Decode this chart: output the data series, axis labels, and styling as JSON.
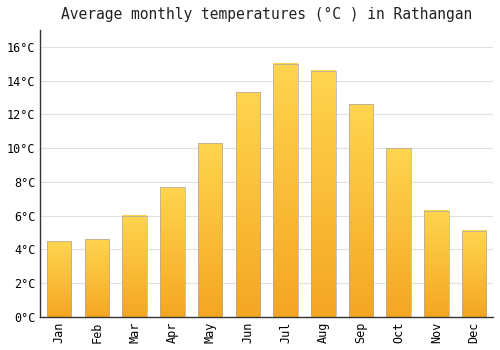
{
  "title": "Average monthly temperatures (°C ) in Rathangan",
  "months": [
    "Jan",
    "Feb",
    "Mar",
    "Apr",
    "May",
    "Jun",
    "Jul",
    "Aug",
    "Sep",
    "Oct",
    "Nov",
    "Dec"
  ],
  "values": [
    4.5,
    4.6,
    6.0,
    7.7,
    10.3,
    13.3,
    15.0,
    14.6,
    12.6,
    10.0,
    6.3,
    5.1
  ],
  "bar_color_bottom": "#F5A623",
  "bar_color_top": "#FFD966",
  "bar_edge_color": "#AAAAAA",
  "background_color": "#FFFFFF",
  "grid_color": "#E0E0E0",
  "ylim": [
    0,
    17
  ],
  "yticks": [
    0,
    2,
    4,
    6,
    8,
    10,
    12,
    14,
    16
  ],
  "title_fontsize": 10.5,
  "tick_fontsize": 8.5,
  "font_family": "monospace"
}
